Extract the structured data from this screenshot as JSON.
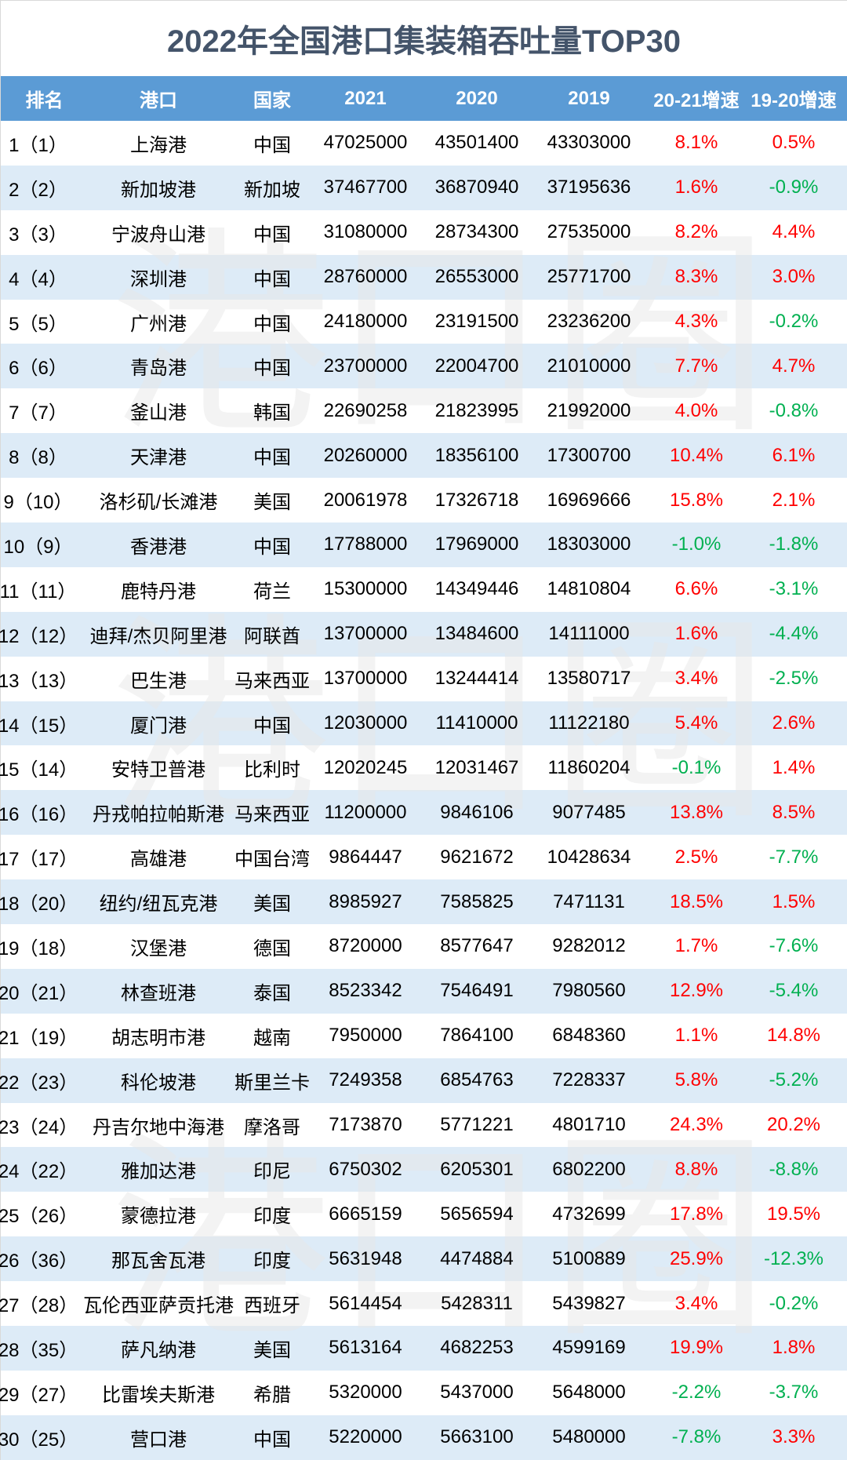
{
  "colors": {
    "title": "#44546a",
    "header_bg": "#5b9bd5",
    "row_alt_bg": "#ddebf7",
    "positive": "#ff0000",
    "negative": "#00b050"
  },
  "watermark": {
    "text": "港口圈"
  },
  "chart_data": {
    "type": "table",
    "title": "2022年全国港口集装箱吞吐量TOP30",
    "columns": [
      "排名",
      "港口",
      "国家",
      "2021",
      "2020",
      "2019",
      "20-21增速",
      "19-20增速"
    ],
    "rows": [
      [
        "1（1）",
        "上海港",
        "中国",
        47025000,
        43501400,
        43303000,
        "8.1%",
        "0.5%"
      ],
      [
        "2（2）",
        "新加坡港",
        "新加坡",
        37467700,
        36870940,
        37195636,
        "1.6%",
        "-0.9%"
      ],
      [
        "3（3）",
        "宁波舟山港",
        "中国",
        31080000,
        28734300,
        27535000,
        "8.2%",
        "4.4%"
      ],
      [
        "4（4）",
        "深圳港",
        "中国",
        28760000,
        26553000,
        25771700,
        "8.3%",
        "3.0%"
      ],
      [
        "5（5）",
        "广州港",
        "中国",
        24180000,
        23191500,
        23236200,
        "4.3%",
        "-0.2%"
      ],
      [
        "6（6）",
        "青岛港",
        "中国",
        23700000,
        22004700,
        21010000,
        "7.7%",
        "4.7%"
      ],
      [
        "7（7）",
        "釜山港",
        "韩国",
        22690258,
        21823995,
        21992000,
        "4.0%",
        "-0.8%"
      ],
      [
        "8（8）",
        "天津港",
        "中国",
        20260000,
        18356100,
        17300700,
        "10.4%",
        "6.1%"
      ],
      [
        "9（10）",
        "洛杉矶/长滩港",
        "美国",
        20061978,
        17326718,
        16969666,
        "15.8%",
        "2.1%"
      ],
      [
        "10（9）",
        "香港港",
        "中国",
        17788000,
        17969000,
        18303000,
        "-1.0%",
        "-1.8%"
      ],
      [
        "11（11）",
        "鹿特丹港",
        "荷兰",
        15300000,
        14349446,
        14810804,
        "6.6%",
        "-3.1%"
      ],
      [
        "12（12）",
        "迪拜/杰贝阿里港",
        "阿联酋",
        13700000,
        13484600,
        14111000,
        "1.6%",
        "-4.4%"
      ],
      [
        "13（13）",
        "巴生港",
        "马来西亚",
        13700000,
        13244414,
        13580717,
        "3.4%",
        "-2.5%"
      ],
      [
        "14（15）",
        "厦门港",
        "中国",
        12030000,
        11410000,
        11122180,
        "5.4%",
        "2.6%"
      ],
      [
        "15（14）",
        "安特卫普港",
        "比利时",
        12020245,
        12031467,
        11860204,
        "-0.1%",
        "1.4%"
      ],
      [
        "16（16）",
        "丹戎帕拉帕斯港",
        "马来西亚",
        11200000,
        9846106,
        9077485,
        "13.8%",
        "8.5%"
      ],
      [
        "17（17）",
        "高雄港",
        "中国台湾",
        9864447,
        9621672,
        10428634,
        "2.5%",
        "-7.7%"
      ],
      [
        "18（20）",
        "纽约/纽瓦克港",
        "美国",
        8985927,
        7585825,
        7471131,
        "18.5%",
        "1.5%"
      ],
      [
        "19（18）",
        "汉堡港",
        "德国",
        8720000,
        8577647,
        9282012,
        "1.7%",
        "-7.6%"
      ],
      [
        "20（21）",
        "林查班港",
        "泰国",
        8523342,
        7546491,
        7980560,
        "12.9%",
        "-5.4%"
      ],
      [
        "21（19）",
        "胡志明市港",
        "越南",
        7950000,
        7864100,
        6848360,
        "1.1%",
        "14.8%"
      ],
      [
        "22（23）",
        "科伦坡港",
        "斯里兰卡",
        7249358,
        6854763,
        7228337,
        "5.8%",
        "-5.2%"
      ],
      [
        "23（24）",
        "丹吉尔地中海港",
        "摩洛哥",
        7173870,
        5771221,
        4801710,
        "24.3%",
        "20.2%"
      ],
      [
        "24（22）",
        "雅加达港",
        "印尼",
        6750302,
        6205301,
        6802200,
        "8.8%",
        "-8.8%"
      ],
      [
        "25（26）",
        "蒙德拉港",
        "印度",
        6665159,
        5656594,
        4732699,
        "17.8%",
        "19.5%"
      ],
      [
        "26（36）",
        "那瓦舍瓦港",
        "印度",
        5631948,
        4474884,
        5100889,
        "25.9%",
        "-12.3%"
      ],
      [
        "27（28）",
        "瓦伦西亚萨贡托港",
        "西班牙",
        5614454,
        5428311,
        5439827,
        "3.4%",
        "-0.2%"
      ],
      [
        "28（35）",
        "萨凡纳港",
        "美国",
        5613164,
        4682253,
        4599169,
        "19.9%",
        "1.8%"
      ],
      [
        "29（27）",
        "比雷埃夫斯港",
        "希腊",
        5320000,
        5437000,
        5648000,
        "-2.2%",
        "-3.7%"
      ],
      [
        "30（25）",
        "营口港",
        "中国",
        5220000,
        5663100,
        5480000,
        "-7.8%",
        "3.3%"
      ]
    ]
  }
}
